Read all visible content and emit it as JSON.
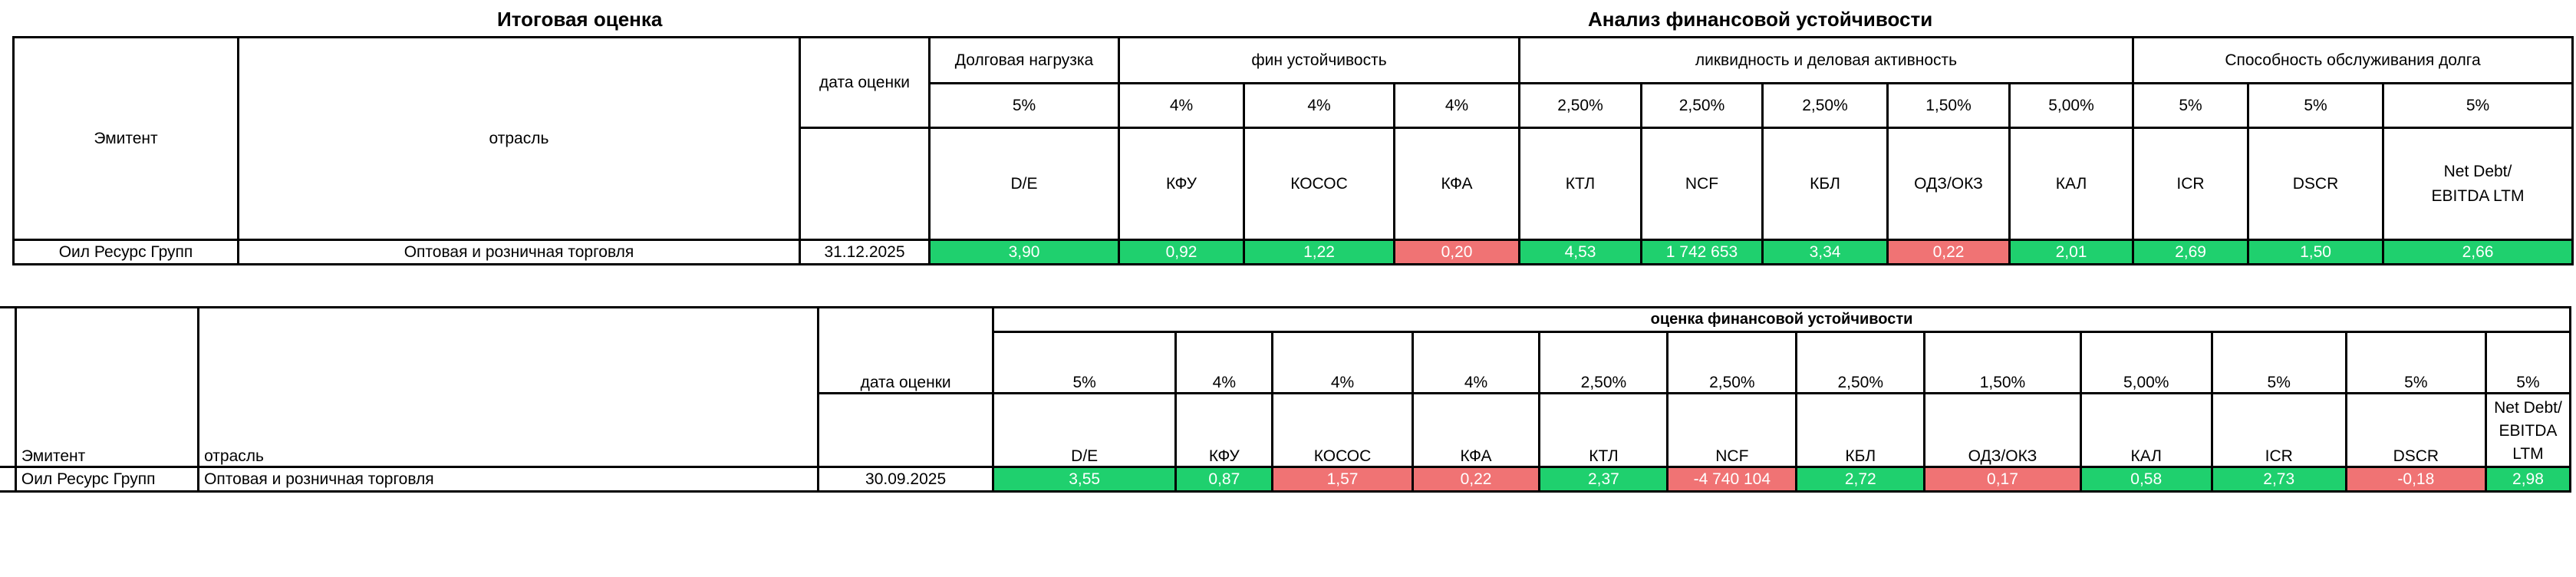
{
  "top": {
    "title_left": "Итоговая оценка",
    "title_right": "Анализ финансовой устойчивости",
    "col_emitent": "Эмитент",
    "col_industry": "отрасль",
    "col_date": "дата оценки",
    "groups": {
      "debt_load": "Долговая нагрузка",
      "fin_stability": "фин устойчивость",
      "liquidity": "ликвидность и деловая активность",
      "debt_service": "Способность обслуживания долга"
    },
    "weights": [
      "5%",
      "4%",
      "4%",
      "4%",
      "2,50%",
      "2,50%",
      "2,50%",
      "1,50%",
      "5,00%",
      "5%",
      "5%",
      "5%"
    ],
    "metrics": [
      "D/E",
      "КФУ",
      "КОСОС",
      "КФА",
      "КТЛ",
      "NCF",
      "КБЛ",
      "ОДЗ/ОКЗ",
      "КАЛ",
      "ICR",
      "DSCR",
      "Net Debt/ EBITDA LTM"
    ],
    "row": {
      "emitent": "Оил Ресурс Групп",
      "industry": "Оптовая и розничная торговля",
      "date": "31.12.2025",
      "values": [
        "3,90",
        "0,92",
        "1,22",
        "0,20",
        "4,53",
        "1 742 653",
        "3,34",
        "0,22",
        "2,01",
        "2,69",
        "1,50",
        "2,66"
      ],
      "status": [
        "green",
        "green",
        "green",
        "red",
        "green",
        "green",
        "green",
        "red",
        "green",
        "green",
        "green",
        "green"
      ]
    }
  },
  "bottom": {
    "header": "оценка финансовой устойчивости",
    "col_emitent": "Эмитент",
    "col_industry": "отрасль",
    "col_date": "дата оценки",
    "weights": [
      "5%",
      "4%",
      "4%",
      "4%",
      "2,50%",
      "2,50%",
      "2,50%",
      "1,50%",
      "5,00%",
      "5%",
      "5%",
      "5%"
    ],
    "metrics": [
      "D/E",
      "КФУ",
      "КОСОС",
      "КФА",
      "КТЛ",
      "NCF",
      "КБЛ",
      "ОДЗ/ОКЗ",
      "КАЛ",
      "ICR",
      "DSCR",
      "Net Debt/ EBITDA LTM"
    ],
    "row": {
      "emitent": "Оил Ресурс Групп",
      "industry": "Оптовая и розничная торговля",
      "date": "30.09.2025",
      "values": [
        "3,55",
        "0,87",
        "1,57",
        "0,22",
        "2,37",
        "-4 740 104",
        "2,72",
        "0,17",
        "0,58",
        "2,73",
        "-0,18",
        "2,98"
      ],
      "status": [
        "green",
        "green",
        "red",
        "red",
        "green",
        "red",
        "green",
        "red",
        "green",
        "green",
        "red",
        "green"
      ]
    }
  },
  "colors": {
    "green": "#1fd06e",
    "red": "#f07374"
  }
}
